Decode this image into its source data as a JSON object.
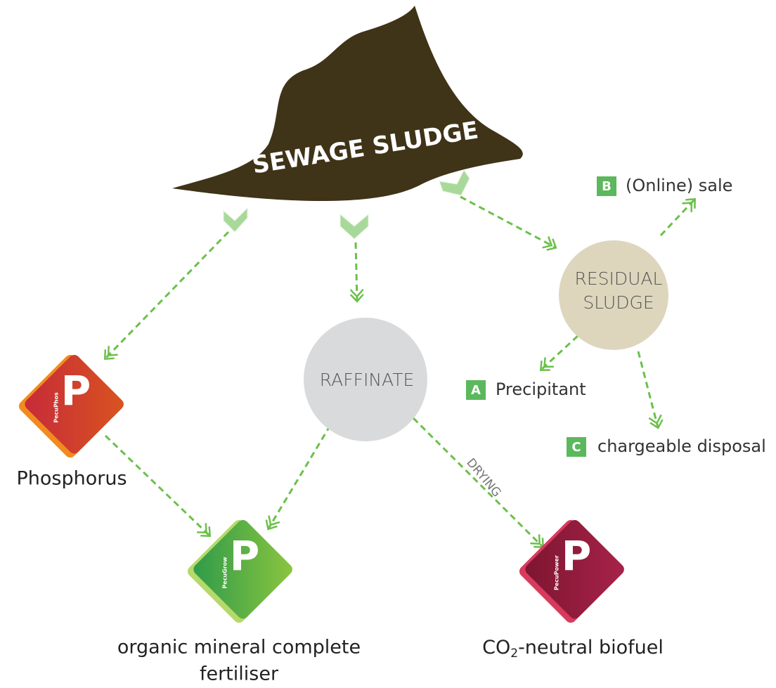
{
  "title": "SEWAGE SLUDGE",
  "nodes": [
    {
      "label_lines": [
        "RESIDUAL",
        "SLUDGE"
      ]
    },
    {
      "label_lines": [
        "RAFFINATE"
      ]
    }
  ],
  "options": [
    {
      "key": "B",
      "label": "(Online) sale"
    },
    {
      "key": "A",
      "label": "Precipitant"
    },
    {
      "key": "C",
      "label": "chargeable disposal"
    }
  ],
  "products": [
    {
      "brand": "PecuPhos",
      "letter": "P",
      "label_parts": [
        "Phosphorus"
      ]
    },
    {
      "brand": "PecuGrow",
      "letter": "P",
      "label_parts": [
        "organic mineral complete",
        "fertiliser"
      ]
    },
    {
      "brand": "PecuPower",
      "letter": "P",
      "label_parts": [
        "CO",
        "2",
        "-neutral biofuel"
      ]
    }
  ],
  "edge_label": "DRYING"
}
